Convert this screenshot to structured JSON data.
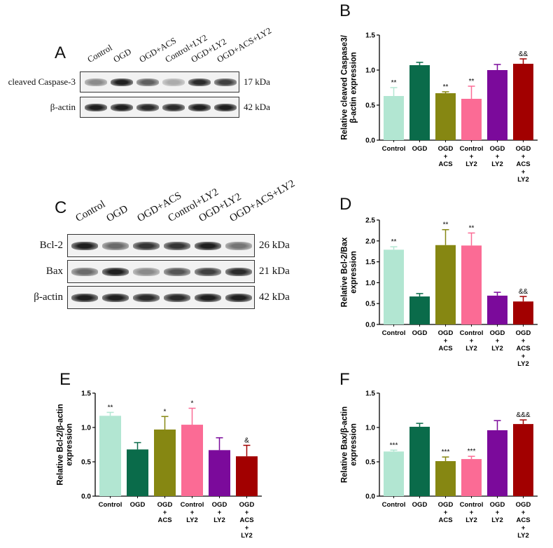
{
  "colors": [
    "#b2e6d2",
    "#0a6b4a",
    "#868712",
    "#fb6b95",
    "#7b0a9b",
    "#a20000"
  ],
  "blot_A": {
    "letter": "A",
    "lanes": [
      "Control",
      "OGD",
      "OGD+ACS",
      "Control+LY2",
      "OGD+LY2",
      "OGD+ACS+LY2"
    ],
    "rows": [
      {
        "label": "cleaved Caspase-3",
        "kda": "17 kDa",
        "intensity": [
          0.45,
          0.95,
          0.65,
          0.3,
          0.9,
          0.8
        ]
      },
      {
        "label": "β-actin",
        "kda": "42 kDa",
        "intensity": [
          0.95,
          0.95,
          0.9,
          0.9,
          0.95,
          0.95
        ]
      }
    ]
  },
  "blot_C": {
    "letter": "C",
    "lanes": [
      "Control",
      "OGD",
      "OGD+ACS",
      "Control+LY2",
      "OGD+LY2",
      "OGD+ACS+LY2"
    ],
    "rows": [
      {
        "label": "Bcl-2",
        "kda": "26 kDa",
        "intensity": [
          0.95,
          0.6,
          0.85,
          0.85,
          0.95,
          0.55
        ]
      },
      {
        "label": "Bax",
        "kda": "21 kDa",
        "intensity": [
          0.6,
          0.95,
          0.45,
          0.7,
          0.8,
          0.9
        ]
      },
      {
        "label": "β-actin",
        "kda": "42 kDa",
        "intensity": [
          0.95,
          0.95,
          0.9,
          0.9,
          0.95,
          0.95
        ]
      }
    ]
  },
  "chart_data": [
    {
      "panel": "B",
      "type": "bar",
      "ylabel": [
        "Relative cleaved Caspase3/",
        "β-actin expression"
      ],
      "ylim": [
        0,
        1.5
      ],
      "yticks": [
        "0.0",
        "0.5",
        "1.0",
        "1.5"
      ],
      "categories": [
        [
          "Control"
        ],
        [
          "OGD"
        ],
        [
          "OGD",
          "+",
          "ACS"
        ],
        [
          "Control",
          "+",
          "LY2"
        ],
        [
          "OGD",
          "+",
          "LY2"
        ],
        [
          "OGD",
          "+",
          "ACS",
          "+",
          "LY2"
        ]
      ],
      "values": [
        0.63,
        1.07,
        0.67,
        0.59,
        1.0,
        1.09
      ],
      "errors": [
        0.12,
        0.04,
        0.02,
        0.18,
        0.08,
        0.07
      ],
      "annotations": [
        "**",
        "",
        "**",
        "**",
        "",
        "&&"
      ]
    },
    {
      "panel": "D",
      "type": "bar",
      "ylabel": [
        "Relative Bcl-2/Bax",
        "expression"
      ],
      "ylim": [
        0,
        2.5
      ],
      "yticks": [
        "0.0",
        "0.5",
        "1.0",
        "1.5",
        "2.0",
        "2.5"
      ],
      "categories": [
        [
          "Control"
        ],
        [
          "OGD"
        ],
        [
          "OGD",
          "+",
          "ACS"
        ],
        [
          "Control",
          "+",
          "LY2"
        ],
        [
          "OGD",
          "+",
          "LY2"
        ],
        [
          "OGD",
          "+",
          "ACS",
          "+",
          "LY2"
        ]
      ],
      "values": [
        1.79,
        0.67,
        1.9,
        1.89,
        0.69,
        0.55
      ],
      "errors": [
        0.07,
        0.07,
        0.37,
        0.3,
        0.08,
        0.12
      ],
      "annotations": [
        "**",
        "",
        "**",
        "**",
        "",
        "&&"
      ]
    },
    {
      "panel": "E",
      "type": "bar",
      "ylabel": [
        "Relative Bcl-2/β-actin",
        "expression"
      ],
      "ylim": [
        0,
        1.5
      ],
      "yticks": [
        "0.0",
        "0.5",
        "1.0",
        "1.5"
      ],
      "categories": [
        [
          "Control"
        ],
        [
          "OGD"
        ],
        [
          "OGD",
          "+",
          "ACS"
        ],
        [
          "Control",
          "+",
          "LY2"
        ],
        [
          "OGD",
          "+",
          "LY2"
        ],
        [
          "OGD",
          "+",
          "ACS",
          "+",
          "LY2"
        ]
      ],
      "values": [
        1.17,
        0.68,
        0.97,
        1.04,
        0.67,
        0.58
      ],
      "errors": [
        0.05,
        0.1,
        0.19,
        0.24,
        0.18,
        0.16
      ],
      "annotations": [
        "**",
        "",
        "*",
        "*",
        "",
        "&"
      ]
    },
    {
      "panel": "F",
      "type": "bar",
      "ylabel": [
        "Relative Bax/β-actin",
        "expression"
      ],
      "ylim": [
        0,
        1.5
      ],
      "yticks": [
        "0.0",
        "0.5",
        "1.0",
        "1.5"
      ],
      "categories": [
        [
          "Control"
        ],
        [
          "OGD"
        ],
        [
          "OGD",
          "+",
          "ACS"
        ],
        [
          "Control",
          "+",
          "LY2"
        ],
        [
          "OGD",
          "+",
          "LY2"
        ],
        [
          "OGD",
          "+",
          "ACS",
          "+",
          "LY2"
        ]
      ],
      "values": [
        0.65,
        1.01,
        0.51,
        0.54,
        0.96,
        1.05
      ],
      "errors": [
        0.02,
        0.05,
        0.06,
        0.04,
        0.14,
        0.06
      ],
      "annotations": [
        "***",
        "",
        "***",
        "***",
        "",
        "&&&"
      ]
    }
  ]
}
